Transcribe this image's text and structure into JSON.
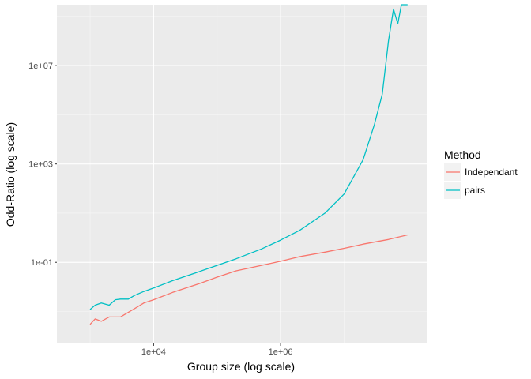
{
  "chart_data": {
    "type": "line",
    "xlabel": "Group size (log scale)",
    "ylabel": "Odd-Ratio (log scale)",
    "x_scale": "log10",
    "y_scale": "log10",
    "xlim": [
      300,
      200000000
    ],
    "ylim": [
      5e-05,
      3000000000
    ],
    "x_ticks": [
      {
        "value": 10000,
        "label": "1e+04"
      },
      {
        "value": 1000000,
        "label": "1e+06"
      }
    ],
    "y_ticks": [
      {
        "value": 0.1,
        "label": "1e-01"
      },
      {
        "value": 1000,
        "label": "1e+03"
      },
      {
        "value": 10000000,
        "label": "1e+07"
      }
    ],
    "grid": true,
    "legend": {
      "title": "Method",
      "position": "right"
    },
    "series": [
      {
        "name": "Independant",
        "color": "#F8766D",
        "x": [
          1000,
          1200,
          1500,
          2000,
          3000,
          5000,
          7000,
          10000,
          20000,
          50000,
          100000,
          200000,
          500000,
          1000000,
          2000000,
          5000000,
          10000000,
          20000000,
          50000000,
          100000000
        ],
        "y": [
          0.0003,
          0.0005,
          0.0004,
          0.0006,
          0.0006,
          0.0013,
          0.0022,
          0.003,
          0.006,
          0.013,
          0.025,
          0.045,
          0.075,
          0.11,
          0.17,
          0.26,
          0.37,
          0.55,
          0.85,
          1.3
        ]
      },
      {
        "name": "pairs",
        "color": "#00BFC4",
        "x": [
          1000,
          1200,
          1500,
          2000,
          2500,
          3000,
          4000,
          5000,
          7000,
          10000,
          20000,
          50000,
          100000,
          200000,
          500000,
          1000000,
          2000000,
          5000000,
          10000000,
          20000000,
          30000000,
          40000000,
          50000000,
          60000000,
          70000000,
          80000000,
          100000000
        ],
        "y": [
          0.0012,
          0.0018,
          0.0022,
          0.0018,
          0.003,
          0.0032,
          0.0032,
          0.0045,
          0.0065,
          0.009,
          0.018,
          0.04,
          0.075,
          0.14,
          0.35,
          0.8,
          2,
          10,
          60,
          1500,
          40000,
          700000,
          100000000,
          2000000000,
          500000000,
          3000000000,
          3000000000
        ]
      }
    ]
  }
}
